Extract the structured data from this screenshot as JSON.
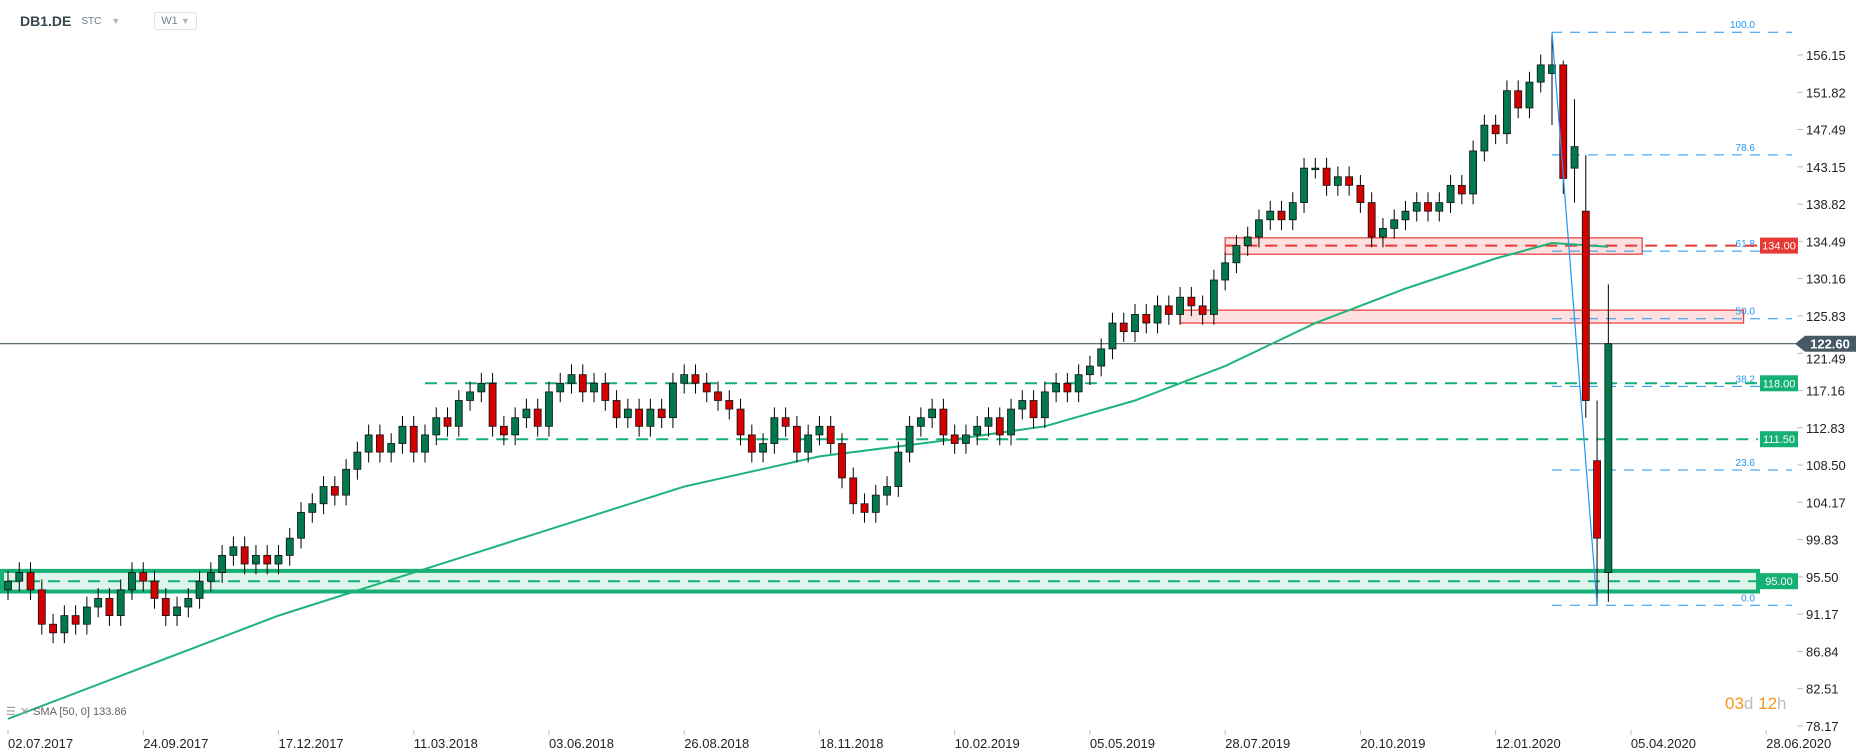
{
  "header": {
    "symbol": "DB1.DE",
    "type": "STC",
    "timeframe": "W1"
  },
  "legend": {
    "indicator": "SMA [50, 0] 133.86"
  },
  "timer": {
    "days": "03",
    "d": "d",
    "hours": "12",
    "h": "h"
  },
  "colors": {
    "up": "#007a4d",
    "down": "#d50000",
    "sma": "#1fb37c",
    "fib": "#2196f3",
    "support": "#14b074",
    "resistance": "#e53935",
    "last_price": "#455a64"
  },
  "chart_data": {
    "type": "candlestick",
    "title": "DB1.DE W1",
    "x_tick_labels": [
      "02.07.2017",
      "24.09.2017",
      "17.12.2017",
      "11.03.2018",
      "03.06.2018",
      "26.08.2018",
      "18.11.2018",
      "10.02.2019",
      "05.05.2019",
      "28.07.2019",
      "20.10.2019",
      "12.01.2020",
      "05.04.2020",
      "28.06.2020"
    ],
    "x_tick_every_weeks": 12,
    "y_ticks": [
      "156.15",
      "151.82",
      "147.49",
      "143.15",
      "138.82",
      "134.49",
      "130.16",
      "125.83",
      "121.49",
      "117.16",
      "112.83",
      "108.50",
      "104.17",
      "99.83",
      "95.50",
      "91.17",
      "86.84",
      "82.51",
      "78.17"
    ],
    "ylim": [
      78.17,
      156.15
    ],
    "closes": [
      95,
      96,
      94,
      90,
      89,
      91,
      90,
      92,
      93,
      91,
      94,
      96,
      95,
      93,
      91,
      92,
      93,
      95,
      96,
      98,
      99,
      97,
      98,
      97,
      98,
      100,
      103,
      104,
      106,
      105,
      108,
      110,
      112,
      110,
      111,
      113,
      110,
      112,
      114,
      113,
      116,
      117,
      118,
      113,
      112,
      114,
      115,
      113,
      117,
      118,
      119,
      117,
      118,
      116,
      114,
      115,
      113,
      115,
      114,
      118,
      119,
      118,
      117,
      116,
      115,
      112,
      110,
      111,
      114,
      113,
      110,
      112,
      113,
      111,
      107,
      104,
      103,
      105,
      106,
      110,
      113,
      114,
      115,
      112,
      111,
      112,
      113,
      114,
      112,
      115,
      116,
      114,
      117,
      118,
      117,
      119,
      120,
      122,
      125,
      124,
      126,
      125,
      127,
      126,
      128,
      127,
      126,
      130,
      132,
      134,
      135,
      137,
      138,
      137,
      139,
      143,
      143,
      141,
      142,
      141,
      139,
      135,
      136,
      137,
      138,
      139,
      138,
      139,
      141,
      140,
      145,
      148,
      147,
      152,
      150,
      153,
      155
    ],
    "last_candles_ohlc": [
      [
        154,
        158.8,
        148,
        155
      ],
      [
        155,
        155.5,
        140,
        141.8
      ],
      [
        143,
        151,
        139,
        145.5
      ],
      [
        138,
        144.5,
        114,
        116
      ],
      [
        109,
        116,
        92.2,
        100
      ],
      [
        96,
        129.5,
        92.6,
        122.6
      ]
    ],
    "sma": {
      "name": "SMA 50",
      "points": [
        [
          0,
          79
        ],
        [
          12,
          85
        ],
        [
          24,
          91
        ],
        [
          36,
          96
        ],
        [
          48,
          101
        ],
        [
          60,
          106
        ],
        [
          72,
          109.5
        ],
        [
          84,
          111.5
        ],
        [
          92,
          113
        ],
        [
          100,
          116
        ],
        [
          108,
          120
        ],
        [
          116,
          125
        ],
        [
          124,
          129
        ],
        [
          132,
          132.5
        ],
        [
          137,
          134.3
        ],
        [
          142,
          133.86
        ]
      ]
    },
    "last_price": {
      "value": 122.6,
      "label": "122.60"
    },
    "levels": [
      {
        "label": "134.00",
        "value": 134.0,
        "kind": "resistance",
        "from_week": 108
      },
      {
        "label": "118.00",
        "value": 118.0,
        "kind": "support",
        "from_week": 37
      },
      {
        "label": "111.50",
        "value": 111.5,
        "kind": "support",
        "from_week": 38
      },
      {
        "label": "95.00",
        "value": 95.0,
        "kind": "support",
        "from_week": 0
      }
    ],
    "zones": [
      {
        "kind": "support",
        "low": 93.8,
        "high": 96.2,
        "from_week": 0
      },
      {
        "kind": "resistance",
        "low": 133.0,
        "high": 134.9,
        "from_week": 108,
        "to_week": 145
      },
      {
        "kind": "resistance",
        "low": 125.0,
        "high": 126.5,
        "from_week": 104,
        "to_week": 154
      }
    ],
    "fibonacci": {
      "from_week": 137,
      "high": 158.8,
      "low": 92.2,
      "levels": [
        {
          "label": "100.0",
          "ratio": 1.0
        },
        {
          "label": "78.6",
          "ratio": 0.786
        },
        {
          "label": "61.8",
          "ratio": 0.618
        },
        {
          "label": "50.0",
          "ratio": 0.5
        },
        {
          "label": "38.2",
          "ratio": 0.382
        },
        {
          "label": "23.6",
          "ratio": 0.236
        },
        {
          "label": "0.0",
          "ratio": 0.0
        }
      ]
    },
    "trendline": {
      "from": [
        137,
        158.8
      ],
      "to": [
        141,
        92.2
      ]
    }
  }
}
